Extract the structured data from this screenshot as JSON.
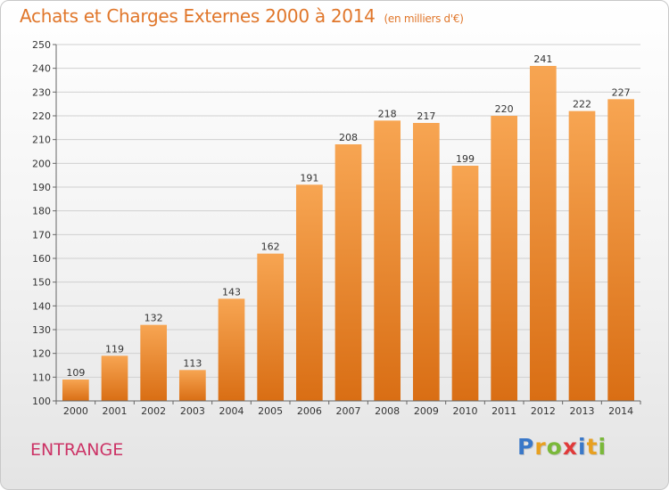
{
  "chart_data": {
    "type": "bar",
    "title": "Achats et Charges Externes 2000 à 2014",
    "subtitle": "(en milliers d'€)",
    "categories": [
      "2000",
      "2001",
      "2002",
      "2003",
      "2004",
      "2005",
      "2006",
      "2007",
      "2008",
      "2009",
      "2010",
      "2011",
      "2012",
      "2013",
      "2014"
    ],
    "values": [
      109,
      119,
      132,
      113,
      143,
      162,
      191,
      208,
      218,
      217,
      199,
      220,
      241,
      222,
      227
    ],
    "ylim": [
      100,
      250
    ],
    "yticks": [
      100,
      110,
      120,
      130,
      140,
      150,
      160,
      170,
      180,
      190,
      200,
      210,
      220,
      230,
      240,
      250
    ],
    "grid": true,
    "bar_color": "#f28c30"
  },
  "footer": {
    "commune": "ENTRANGE",
    "logo_letters": [
      {
        "ch": "P",
        "color": "#3a78c8"
      },
      {
        "ch": "r",
        "color": "#e8a020"
      },
      {
        "ch": "o",
        "color": "#7ab83a"
      },
      {
        "ch": "x",
        "color": "#e03a3a"
      },
      {
        "ch": "i",
        "color": "#3a78c8"
      },
      {
        "ch": "t",
        "color": "#e8a020"
      },
      {
        "ch": "i",
        "color": "#7ab83a"
      }
    ]
  }
}
